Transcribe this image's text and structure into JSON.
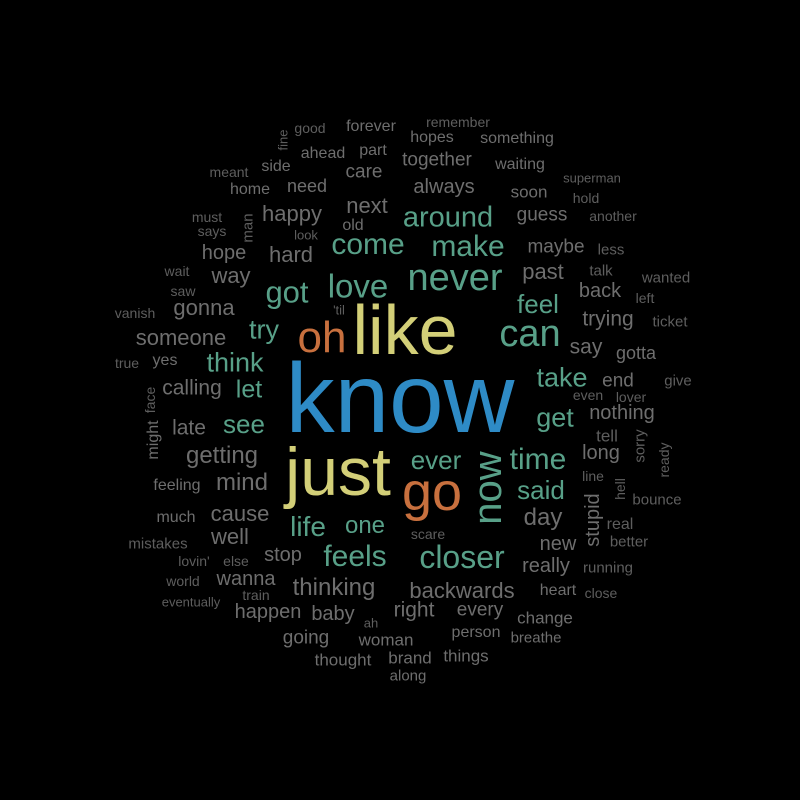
{
  "words": [
    {
      "text": "know",
      "color": "blue"
    },
    {
      "text": "like",
      "color": "yellow"
    },
    {
      "text": "just",
      "color": "yellow"
    },
    {
      "text": "go",
      "color": "orange"
    },
    {
      "text": "oh",
      "color": "orange"
    },
    {
      "text": "now",
      "color": "teal"
    },
    {
      "text": "never",
      "color": "teal"
    },
    {
      "text": "can",
      "color": "teal"
    },
    {
      "text": "love",
      "color": "teal"
    },
    {
      "text": "got",
      "color": "teal"
    },
    {
      "text": "come",
      "color": "teal"
    },
    {
      "text": "make",
      "color": "teal"
    },
    {
      "text": "time",
      "color": "teal"
    },
    {
      "text": "closer",
      "color": "teal"
    },
    {
      "text": "feels",
      "color": "teal"
    },
    {
      "text": "life",
      "color": "teal"
    },
    {
      "text": "around",
      "color": "teal"
    },
    {
      "text": "think",
      "color": "teal"
    },
    {
      "text": "try",
      "color": "teal"
    },
    {
      "text": "take",
      "color": "teal"
    },
    {
      "text": "get",
      "color": "teal"
    },
    {
      "text": "said",
      "color": "teal"
    },
    {
      "text": "feel",
      "color": "teal"
    },
    {
      "text": "ever",
      "color": "teal"
    },
    {
      "text": "see",
      "color": "teal"
    },
    {
      "text": "let",
      "color": "teal"
    },
    {
      "text": "one",
      "color": "teal"
    },
    {
      "text": "past",
      "color": "gray"
    },
    {
      "text": "next",
      "color": "gray"
    },
    {
      "text": "happy",
      "color": "gray"
    },
    {
      "text": "hard",
      "color": "gray"
    },
    {
      "text": "way",
      "color": "gray"
    },
    {
      "text": "gonna",
      "color": "gray"
    },
    {
      "text": "someone",
      "color": "gray"
    },
    {
      "text": "calling",
      "color": "gray"
    },
    {
      "text": "getting",
      "color": "gray"
    },
    {
      "text": "mind",
      "color": "gray"
    },
    {
      "text": "cause",
      "color": "gray"
    },
    {
      "text": "well",
      "color": "gray"
    },
    {
      "text": "late",
      "color": "gray"
    },
    {
      "text": "day",
      "color": "gray"
    },
    {
      "text": "long",
      "color": "gray"
    },
    {
      "text": "say",
      "color": "gray"
    },
    {
      "text": "trying",
      "color": "gray"
    },
    {
      "text": "back",
      "color": "gray"
    },
    {
      "text": "maybe",
      "color": "gray"
    },
    {
      "text": "guess",
      "color": "gray"
    },
    {
      "text": "always",
      "color": "gray"
    },
    {
      "text": "together",
      "color": "gray"
    },
    {
      "text": "care",
      "color": "gray"
    },
    {
      "text": "need",
      "color": "gray"
    },
    {
      "text": "hope",
      "color": "gray"
    },
    {
      "text": "end",
      "color": "gray"
    },
    {
      "text": "nothing",
      "color": "gray"
    },
    {
      "text": "stupid",
      "color": "gray"
    },
    {
      "text": "new",
      "color": "gray"
    },
    {
      "text": "really",
      "color": "gray"
    },
    {
      "text": "backwards",
      "color": "gray"
    },
    {
      "text": "thinking",
      "color": "gray"
    },
    {
      "text": "stop",
      "color": "gray"
    },
    {
      "text": "wanna",
      "color": "gray"
    },
    {
      "text": "happen",
      "color": "gray"
    },
    {
      "text": "baby",
      "color": "gray"
    },
    {
      "text": "right",
      "color": "gray"
    },
    {
      "text": "every",
      "color": "gray"
    },
    {
      "text": "going",
      "color": "gray"
    },
    {
      "text": "woman",
      "color": "gray"
    },
    {
      "text": "thought",
      "color": "gray"
    },
    {
      "text": "brand",
      "color": "gray"
    },
    {
      "text": "things",
      "color": "gray"
    },
    {
      "text": "person",
      "color": "gray"
    },
    {
      "text": "change",
      "color": "gray"
    },
    {
      "text": "breathe",
      "color": "gray"
    },
    {
      "text": "along",
      "color": "gray"
    },
    {
      "text": "heart",
      "color": "gray"
    },
    {
      "text": "close",
      "color": "gray"
    },
    {
      "text": "running",
      "color": "gray"
    },
    {
      "text": "better",
      "color": "gray"
    },
    {
      "text": "real",
      "color": "gray"
    },
    {
      "text": "bounce",
      "color": "gray"
    },
    {
      "text": "hell",
      "color": "gray"
    },
    {
      "text": "line",
      "color": "gray"
    },
    {
      "text": "sorry",
      "color": "gray"
    },
    {
      "text": "ready",
      "color": "gray"
    },
    {
      "text": "tell",
      "color": "gray"
    },
    {
      "text": "gotta",
      "color": "gray"
    },
    {
      "text": "give",
      "color": "gray"
    },
    {
      "text": "even",
      "color": "gray"
    },
    {
      "text": "lover",
      "color": "gray"
    },
    {
      "text": "ticket",
      "color": "gray"
    },
    {
      "text": "left",
      "color": "gray"
    },
    {
      "text": "wanted",
      "color": "gray"
    },
    {
      "text": "talk",
      "color": "gray"
    },
    {
      "text": "less",
      "color": "gray"
    },
    {
      "text": "another",
      "color": "gray"
    },
    {
      "text": "hold",
      "color": "gray"
    },
    {
      "text": "superman",
      "color": "gray"
    },
    {
      "text": "soon",
      "color": "gray"
    },
    {
      "text": "waiting",
      "color": "gray"
    },
    {
      "text": "something",
      "color": "gray"
    },
    {
      "text": "hopes",
      "color": "gray"
    },
    {
      "text": "remember",
      "color": "gray"
    },
    {
      "text": "forever",
      "color": "gray"
    },
    {
      "text": "part",
      "color": "gray"
    },
    {
      "text": "good",
      "color": "gray"
    },
    {
      "text": "fine",
      "color": "gray"
    },
    {
      "text": "ahead",
      "color": "gray"
    },
    {
      "text": "side",
      "color": "gray"
    },
    {
      "text": "meant",
      "color": "gray"
    },
    {
      "text": "home",
      "color": "gray"
    },
    {
      "text": "man",
      "color": "gray"
    },
    {
      "text": "must",
      "color": "gray"
    },
    {
      "text": "says",
      "color": "gray"
    },
    {
      "text": "look",
      "color": "gray"
    },
    {
      "text": "old",
      "color": "gray"
    },
    {
      "text": "wait",
      "color": "gray"
    },
    {
      "text": "saw",
      "color": "gray"
    },
    {
      "text": "vanish",
      "color": "gray"
    },
    {
      "text": "'til",
      "color": "gray"
    },
    {
      "text": "true",
      "color": "gray"
    },
    {
      "text": "yes",
      "color": "gray"
    },
    {
      "text": "face",
      "color": "gray"
    },
    {
      "text": "might",
      "color": "gray"
    },
    {
      "text": "feeling",
      "color": "gray"
    },
    {
      "text": "much",
      "color": "gray"
    },
    {
      "text": "mistakes",
      "color": "gray"
    },
    {
      "text": "lovin'",
      "color": "gray"
    },
    {
      "text": "else",
      "color": "gray"
    },
    {
      "text": "world",
      "color": "gray"
    },
    {
      "text": "train",
      "color": "gray"
    },
    {
      "text": "eventually",
      "color": "gray"
    },
    {
      "text": "ah",
      "color": "gray"
    },
    {
      "text": "scare",
      "color": "gray"
    }
  ]
}
